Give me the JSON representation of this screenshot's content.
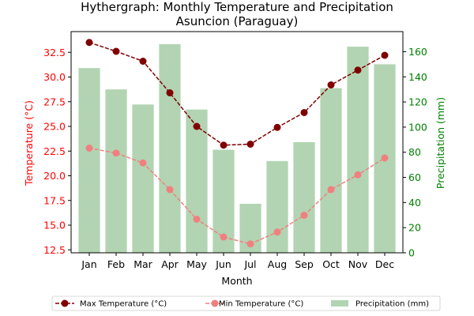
{
  "chart_data": {
    "type": "bar",
    "title": "Hythergraph: Monthly Temperature and Precipitation",
    "subtitle": "Asuncion (Paraguay)",
    "xlabel": "Month",
    "ylabel_left": "Temperature (°C)",
    "ylabel_right": "Precipitation (mm)",
    "categories": [
      "Jan",
      "Feb",
      "Mar",
      "Apr",
      "May",
      "Jun",
      "Jul",
      "Aug",
      "Sep",
      "Oct",
      "Nov",
      "Dec"
    ],
    "ylim_left": [
      12.2,
      34.6
    ],
    "ylim_right": [
      0,
      176
    ],
    "yticks_left": [
      "12.5",
      "15.0",
      "17.5",
      "20.0",
      "22.5",
      "25.0",
      "27.5",
      "30.0",
      "32.5"
    ],
    "yticks_right": [
      "0",
      "20",
      "40",
      "60",
      "80",
      "100",
      "120",
      "140",
      "160"
    ],
    "series": [
      {
        "name": "Max Temperature (°C)",
        "type": "line",
        "axis": "left",
        "color": "#800000",
        "values": [
          33.5,
          32.6,
          31.6,
          28.4,
          25.0,
          23.1,
          23.2,
          24.9,
          26.4,
          29.2,
          30.7,
          32.2
        ]
      },
      {
        "name": "Min Temperature (°C)",
        "type": "line",
        "axis": "left",
        "color": "#f08080",
        "values": [
          22.8,
          22.3,
          21.3,
          18.6,
          15.6,
          13.8,
          13.1,
          14.3,
          16.0,
          18.6,
          20.1,
          21.8
        ]
      },
      {
        "name": "Precipitation (mm)",
        "type": "bar",
        "axis": "right",
        "color": "#2e8b2e",
        "values": [
          147,
          130,
          118,
          166,
          114,
          82,
          39,
          73,
          88,
          131,
          164,
          150
        ]
      }
    ],
    "colors": {
      "left_axis": "#ff0000",
      "right_axis": "#008000"
    },
    "legend_position": "bottom-center",
    "grid": false
  }
}
